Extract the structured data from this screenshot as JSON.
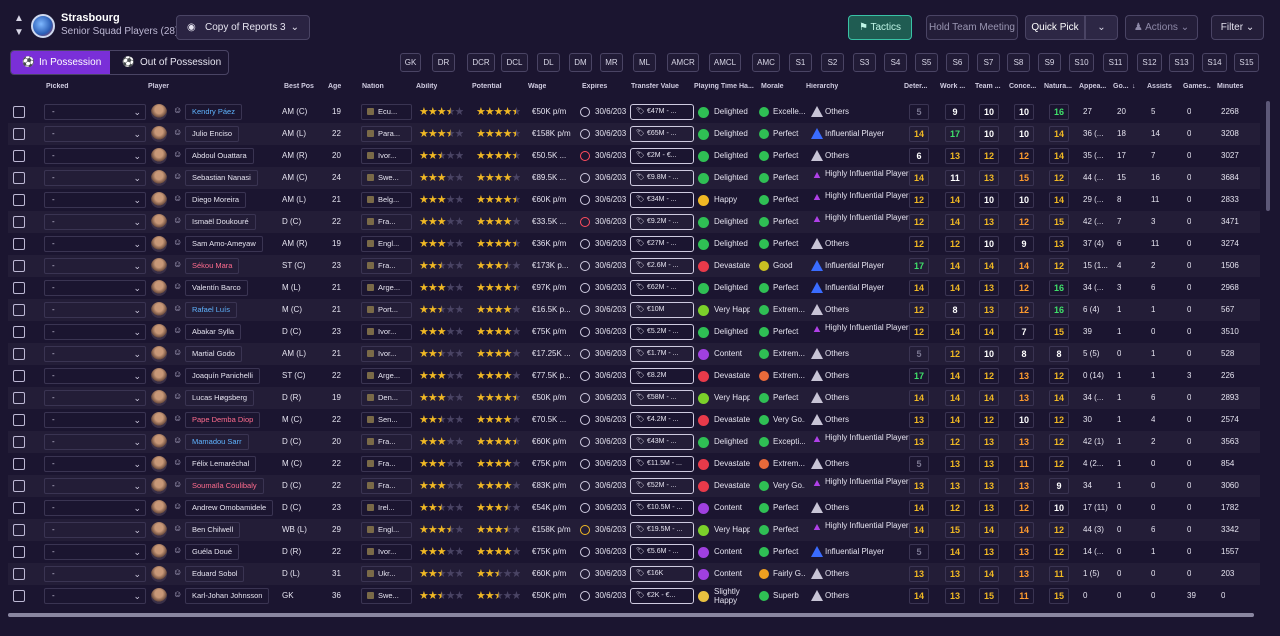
{
  "header": {
    "club": "Strasbourg",
    "squad": "Senior Squad Players (28)",
    "view": "Copy of Reports 3",
    "tactics": "Tactics",
    "meeting": "Hold Team Meeting",
    "quick_pick": "Quick Pick",
    "actions": "Actions",
    "filter": "Filter"
  },
  "toggle": {
    "in": "In Possession",
    "out": "Out of Possession"
  },
  "positions": [
    "GK",
    "DR",
    "DCR",
    "DCL",
    "DL",
    "DM",
    "MR",
    "ML",
    "AMCR",
    "AMCL",
    "AMC",
    "S1",
    "S2",
    "S3",
    "S4",
    "S5",
    "S6",
    "S7",
    "S8",
    "S9",
    "S10",
    "S11",
    "S12",
    "S13",
    "S14",
    "S15"
  ],
  "columns": {
    "picked": "Picked",
    "player": "Player",
    "best_pos": "Best Pos",
    "age": "Age",
    "nation": "Nation",
    "ability": "Ability",
    "potential": "Potential",
    "wage": "Wage",
    "expires": "Expires",
    "transfer_value": "Transfer Value",
    "playing_time": "Playing Time Ha...",
    "morale": "Morale",
    "hierarchy": "Hierarchy",
    "det": "Deter...",
    "work": "Work ...",
    "team": "Team ...",
    "conc": "Conce...",
    "nat": "Natura...",
    "apps": "Appea...",
    "goals": "Go...",
    "assists": "Assists",
    "games": "Games...",
    "minutes": "Minutes"
  },
  "players": [
    {
      "picked": "-",
      "name": "Kendry Páez",
      "nc": "blue",
      "pos": "AM (C)",
      "age": "19",
      "nation": "Ecu...",
      "ab": 3.5,
      "pt": 4.5,
      "wage": "€50K p/m",
      "exp": "30/6/203",
      "ec": "",
      "tv": "€47M - ...",
      "ptime": "Delighted",
      "pm": "#2fbf54",
      "morale": "Excelle...",
      "mm": "#2fbf54",
      "hier": "Others",
      "hc": "",
      "att": [
        [
          "5",
          "gr"
        ],
        [
          "9",
          "w"
        ],
        [
          "10",
          "w"
        ],
        [
          "10",
          "w"
        ],
        [
          "16",
          "g"
        ]
      ],
      "apps": "27",
      "gl": "20",
      "as": "5",
      "gm": "0",
      "mi": "2268"
    },
    {
      "picked": "-",
      "name": "Julio Enciso",
      "nc": "",
      "pos": "AM (L)",
      "age": "22",
      "nation": "Para...",
      "ab": 3.5,
      "pt": 4.5,
      "wage": "€158K p/m",
      "exp": "30/6/203",
      "ec": "",
      "tv": "€65M - ...",
      "ptime": "Delighted",
      "pm": "#2fbf54",
      "morale": "Perfect",
      "mm": "#2fbf54",
      "hier": "Influential Player",
      "hc": "blue",
      "att": [
        [
          "14",
          "y"
        ],
        [
          "17",
          "g"
        ],
        [
          "10",
          "w"
        ],
        [
          "10",
          "w"
        ],
        [
          "14",
          "y"
        ]
      ],
      "apps": "36 (...",
      "gl": "18",
      "as": "14",
      "gm": "0",
      "mi": "3208"
    },
    {
      "picked": "-",
      "name": "Abdoul Ouattara",
      "nc": "",
      "pos": "AM (R)",
      "age": "20",
      "nation": "Ivor...",
      "ab": 2.5,
      "pt": 4.5,
      "wage": "€50.5K ...",
      "exp": "30/6/203",
      "ec": "red",
      "tv": "€2M - €...",
      "ptime": "Delighted",
      "pm": "#2fbf54",
      "morale": "Perfect",
      "mm": "#2fbf54",
      "hier": "Others",
      "hc": "",
      "att": [
        [
          "6",
          "w"
        ],
        [
          "13",
          "y"
        ],
        [
          "12",
          "y"
        ],
        [
          "12",
          "o"
        ],
        [
          "14",
          "y"
        ]
      ],
      "apps": "35 (...",
      "gl": "17",
      "as": "7",
      "gm": "0",
      "mi": "3027"
    },
    {
      "picked": "-",
      "name": "Sebastian Nanasi",
      "nc": "",
      "pos": "AM (C)",
      "age": "24",
      "nation": "Swe...",
      "ab": 3,
      "pt": 4,
      "wage": "€89.5K ...",
      "exp": "30/6/203",
      "ec": "",
      "tv": "€9.8M - ...",
      "ptime": "Delighted",
      "pm": "#2fbf54",
      "morale": "Perfect",
      "mm": "#2fbf54",
      "hier": "Highly Influential Player",
      "hc": "purp",
      "att": [
        [
          "14",
          "y"
        ],
        [
          "11",
          "w"
        ],
        [
          "13",
          "y"
        ],
        [
          "15",
          "o"
        ],
        [
          "12",
          "y"
        ]
      ],
      "apps": "44 (...",
      "gl": "15",
      "as": "16",
      "gm": "0",
      "mi": "3684"
    },
    {
      "picked": "-",
      "name": "Diego Moreira",
      "nc": "",
      "pos": "AM (L)",
      "age": "21",
      "nation": "Belg...",
      "ab": 3,
      "pt": 4.5,
      "wage": "€60K p/m",
      "exp": "30/6/203",
      "ec": "",
      "tv": "€34M - ...",
      "ptime": "Happy",
      "pm": "#f0b824",
      "morale": "Perfect",
      "mm": "#2fbf54",
      "hier": "Highly Influential Player",
      "hc": "purp",
      "att": [
        [
          "12",
          "y"
        ],
        [
          "14",
          "y"
        ],
        [
          "10",
          "w"
        ],
        [
          "10",
          "w"
        ],
        [
          "14",
          "y"
        ]
      ],
      "apps": "29 (...",
      "gl": "8",
      "as": "11",
      "gm": "0",
      "mi": "2833"
    },
    {
      "picked": "-",
      "name": "Ismaël Doukouré",
      "nc": "",
      "pos": "D (C)",
      "age": "22",
      "nation": "Fra...",
      "ab": 3,
      "pt": 4,
      "wage": "€33.5K ...",
      "exp": "30/6/203",
      "ec": "red",
      "tv": "€9.2M - ...",
      "ptime": "Delighted",
      "pm": "#2fbf54",
      "morale": "Perfect",
      "mm": "#2fbf54",
      "hier": "Highly Influential Player",
      "hc": "purp",
      "att": [
        [
          "12",
          "y"
        ],
        [
          "14",
          "y"
        ],
        [
          "13",
          "y"
        ],
        [
          "12",
          "o"
        ],
        [
          "15",
          "y"
        ]
      ],
      "apps": "42 (...",
      "gl": "7",
      "as": "3",
      "gm": "0",
      "mi": "3471"
    },
    {
      "picked": "-",
      "name": "Sam Amo-Ameyaw",
      "nc": "",
      "pos": "AM (R)",
      "age": "19",
      "nation": "Engl...",
      "ab": 3,
      "pt": 4.5,
      "wage": "€36K p/m",
      "exp": "30/6/203",
      "ec": "",
      "tv": "€27M - ...",
      "ptime": "Delighted",
      "pm": "#2fbf54",
      "morale": "Perfect",
      "mm": "#2fbf54",
      "hier": "Others",
      "hc": "",
      "att": [
        [
          "12",
          "y"
        ],
        [
          "12",
          "y"
        ],
        [
          "10",
          "w"
        ],
        [
          "9",
          "w"
        ],
        [
          "13",
          "y"
        ]
      ],
      "apps": "37 (4)",
      "gl": "6",
      "as": "11",
      "gm": "0",
      "mi": "3274"
    },
    {
      "picked": "-",
      "name": "Sékou Mara",
      "nc": "red",
      "pos": "ST (C)",
      "age": "23",
      "nation": "Fra...",
      "ab": 2.5,
      "pt": 3.5,
      "wage": "€173K p...",
      "exp": "30/6/203",
      "ec": "",
      "tv": "€2.6M - ...",
      "ptime": "Devastated",
      "pm": "#e83a4a",
      "morale": "Good",
      "mm": "#c8c022",
      "hier": "Influential Player",
      "hc": "blue",
      "att": [
        [
          "17",
          "g"
        ],
        [
          "14",
          "y"
        ],
        [
          "14",
          "y"
        ],
        [
          "14",
          "o"
        ],
        [
          "12",
          "y"
        ]
      ],
      "apps": "15 (1...",
      "gl": "4",
      "as": "2",
      "gm": "0",
      "mi": "1506"
    },
    {
      "picked": "-",
      "name": "Valentín Barco",
      "nc": "",
      "pos": "M (L)",
      "age": "21",
      "nation": "Arge...",
      "ab": 3,
      "pt": 4.5,
      "wage": "€97K p/m",
      "exp": "30/6/203",
      "ec": "",
      "tv": "€62M - ...",
      "ptime": "Delighted",
      "pm": "#2fbf54",
      "morale": "Perfect",
      "mm": "#2fbf54",
      "hier": "Influential Player",
      "hc": "blue",
      "att": [
        [
          "14",
          "y"
        ],
        [
          "14",
          "y"
        ],
        [
          "13",
          "y"
        ],
        [
          "12",
          "o"
        ],
        [
          "16",
          "g"
        ]
      ],
      "apps": "34 (...",
      "gl": "3",
      "as": "6",
      "gm": "0",
      "mi": "2968"
    },
    {
      "picked": "-",
      "name": "Rafael Luís",
      "nc": "blue",
      "pos": "M (C)",
      "age": "21",
      "nation": "Port...",
      "ab": 2.5,
      "pt": 4,
      "wage": "€16.5K p...",
      "exp": "30/6/203",
      "ec": "",
      "tv": "€10M",
      "ptime": "Very Happy",
      "pm": "#7bd02a",
      "morale": "Extrem...",
      "mm": "#2fbf54",
      "hier": "Others",
      "hc": "",
      "att": [
        [
          "12",
          "y"
        ],
        [
          "8",
          "w"
        ],
        [
          "13",
          "y"
        ],
        [
          "12",
          "o"
        ],
        [
          "16",
          "g"
        ]
      ],
      "apps": "6 (4)",
      "gl": "1",
      "as": "1",
      "gm": "0",
      "mi": "567"
    },
    {
      "picked": "-",
      "name": "Abakar Sylla",
      "nc": "",
      "pos": "D (C)",
      "age": "23",
      "nation": "Ivor...",
      "ab": 3,
      "pt": 4,
      "wage": "€75K p/m",
      "exp": "30/6/203",
      "ec": "",
      "tv": "€5.2M - ...",
      "ptime": "Delighted",
      "pm": "#2fbf54",
      "morale": "Perfect",
      "mm": "#2fbf54",
      "hier": "Highly Influential Player",
      "hc": "purp",
      "att": [
        [
          "12",
          "y"
        ],
        [
          "14",
          "y"
        ],
        [
          "14",
          "y"
        ],
        [
          "7",
          "w"
        ],
        [
          "15",
          "y"
        ]
      ],
      "apps": "39",
      "gl": "1",
      "as": "0",
      "gm": "0",
      "mi": "3510"
    },
    {
      "picked": "-",
      "name": "Martial Godo",
      "nc": "",
      "pos": "AM (L)",
      "age": "21",
      "nation": "Ivor...",
      "ab": 2.5,
      "pt": 4,
      "wage": "€17.25K ...",
      "exp": "30/6/203",
      "ec": "",
      "tv": "€1.7M - ...",
      "ptime": "Content",
      "pm": "#a040e0",
      "morale": "Extrem...",
      "mm": "#2fbf54",
      "hier": "Others",
      "hc": "",
      "att": [
        [
          "5",
          "gr"
        ],
        [
          "12",
          "y"
        ],
        [
          "10",
          "w"
        ],
        [
          "8",
          "w"
        ],
        [
          "8",
          "w"
        ]
      ],
      "apps": "5 (5)",
      "gl": "0",
      "as": "1",
      "gm": "0",
      "mi": "528"
    },
    {
      "picked": "-",
      "name": "Joaquín Panichelli",
      "nc": "",
      "pos": "ST (C)",
      "age": "22",
      "nation": "Arge...",
      "ab": 3,
      "pt": 4,
      "wage": "€77.5K p...",
      "exp": "30/6/203",
      "ec": "",
      "tv": "€8.2M",
      "ptime": "Devastated",
      "pm": "#e83a4a",
      "morale": "Extrem...",
      "mm": "#e86a3a",
      "hier": "Others",
      "hc": "",
      "att": [
        [
          "17",
          "g"
        ],
        [
          "14",
          "y"
        ],
        [
          "12",
          "y"
        ],
        [
          "13",
          "o"
        ],
        [
          "12",
          "y"
        ]
      ],
      "apps": "0 (14)",
      "gl": "1",
      "as": "1",
      "gm": "3",
      "mi": "226"
    },
    {
      "picked": "-",
      "name": "Lucas Høgsberg",
      "nc": "",
      "pos": "D (R)",
      "age": "19",
      "nation": "Den...",
      "ab": 3,
      "pt": 4.5,
      "wage": "€50K p/m",
      "exp": "30/6/203",
      "ec": "",
      "tv": "€58M - ...",
      "ptime": "Very Happy",
      "pm": "#7bd02a",
      "morale": "Perfect",
      "mm": "#2fbf54",
      "hier": "Others",
      "hc": "",
      "att": [
        [
          "14",
          "y"
        ],
        [
          "14",
          "y"
        ],
        [
          "14",
          "y"
        ],
        [
          "13",
          "o"
        ],
        [
          "14",
          "y"
        ]
      ],
      "apps": "34 (...",
      "gl": "1",
      "as": "6",
      "gm": "0",
      "mi": "2893"
    },
    {
      "picked": "-",
      "name": "Pape Demba Diop",
      "nc": "red",
      "pos": "M (C)",
      "age": "22",
      "nation": "Sen...",
      "ab": 2.5,
      "pt": 4,
      "wage": "€70.5K ...",
      "exp": "30/6/203",
      "ec": "",
      "tv": "€4.2M - ...",
      "ptime": "Devastated",
      "pm": "#e83a4a",
      "morale": "Very Go...",
      "mm": "#2fbf54",
      "hier": "Others",
      "hc": "",
      "att": [
        [
          "13",
          "y"
        ],
        [
          "14",
          "y"
        ],
        [
          "12",
          "y"
        ],
        [
          "10",
          "w"
        ],
        [
          "12",
          "y"
        ]
      ],
      "apps": "30",
      "gl": "1",
      "as": "4",
      "gm": "0",
      "mi": "2574"
    },
    {
      "picked": "-",
      "name": "Mamadou Sarr",
      "nc": "blue",
      "pos": "D (C)",
      "age": "20",
      "nation": "Fra...",
      "ab": 3,
      "pt": 4.5,
      "wage": "€60K p/m",
      "exp": "30/6/203",
      "ec": "",
      "tv": "€43M - ...",
      "ptime": "Delighted",
      "pm": "#2fbf54",
      "morale": "Excepti...",
      "mm": "#2fbf54",
      "hier": "Highly Influential Player",
      "hc": "purp",
      "att": [
        [
          "13",
          "y"
        ],
        [
          "12",
          "y"
        ],
        [
          "13",
          "y"
        ],
        [
          "13",
          "o"
        ],
        [
          "12",
          "y"
        ]
      ],
      "apps": "42 (1)",
      "gl": "1",
      "as": "2",
      "gm": "0",
      "mi": "3563"
    },
    {
      "picked": "-",
      "name": "Félix Lemaréchal",
      "nc": "",
      "pos": "M (C)",
      "age": "22",
      "nation": "Fra...",
      "ab": 3,
      "pt": 4,
      "wage": "€75K p/m",
      "exp": "30/6/203",
      "ec": "",
      "tv": "€11.5M - ...",
      "ptime": "Devastated",
      "pm": "#e83a4a",
      "morale": "Extrem...",
      "mm": "#e86a3a",
      "hier": "Others",
      "hc": "",
      "att": [
        [
          "5",
          "gr"
        ],
        [
          "13",
          "y"
        ],
        [
          "13",
          "y"
        ],
        [
          "11",
          "o"
        ],
        [
          "12",
          "y"
        ]
      ],
      "apps": "4 (2...",
      "gl": "1",
      "as": "0",
      "gm": "0",
      "mi": "854"
    },
    {
      "picked": "-",
      "name": "Soumaïla Coulibaly",
      "nc": "red",
      "pos": "D (C)",
      "age": "22",
      "nation": "Fra...",
      "ab": 3,
      "pt": 4,
      "wage": "€83K p/m",
      "exp": "30/6/203",
      "ec": "",
      "tv": "€52M - ...",
      "ptime": "Devastated",
      "pm": "#e83a4a",
      "morale": "Very Go...",
      "mm": "#2fbf54",
      "hier": "Highly Influential Player",
      "hc": "purp",
      "att": [
        [
          "13",
          "y"
        ],
        [
          "13",
          "y"
        ],
        [
          "13",
          "y"
        ],
        [
          "13",
          "o"
        ],
        [
          "9",
          "w"
        ]
      ],
      "apps": "34",
      "gl": "1",
      "as": "0",
      "gm": "0",
      "mi": "3060"
    },
    {
      "picked": "-",
      "name": "Andrew Omobamidele",
      "nc": "",
      "pos": "D (C)",
      "age": "23",
      "nation": "Irel...",
      "ab": 2.5,
      "pt": 3.5,
      "wage": "€54K p/m",
      "exp": "30/6/203",
      "ec": "",
      "tv": "€10.5M - ...",
      "ptime": "Content",
      "pm": "#a040e0",
      "morale": "Perfect",
      "mm": "#2fbf54",
      "hier": "Others",
      "hc": "",
      "att": [
        [
          "14",
          "y"
        ],
        [
          "12",
          "y"
        ],
        [
          "13",
          "y"
        ],
        [
          "12",
          "o"
        ],
        [
          "10",
          "w"
        ]
      ],
      "apps": "17 (11)",
      "gl": "0",
      "as": "0",
      "gm": "0",
      "mi": "1782"
    },
    {
      "picked": "-",
      "name": "Ben Chilwell",
      "nc": "",
      "pos": "WB (L)",
      "age": "29",
      "nation": "Engl...",
      "ab": 3.5,
      "pt": 3.5,
      "wage": "€158K p/m",
      "exp": "30/6/203",
      "ec": "yel",
      "tv": "€19.5M - ...",
      "ptime": "Very Happy",
      "pm": "#7bd02a",
      "morale": "Perfect",
      "mm": "#2fbf54",
      "hier": "Highly Influential Player",
      "hc": "purp",
      "att": [
        [
          "14",
          "y"
        ],
        [
          "15",
          "y"
        ],
        [
          "14",
          "y"
        ],
        [
          "14",
          "o"
        ],
        [
          "12",
          "y"
        ]
      ],
      "apps": "44 (3)",
      "gl": "0",
      "as": "6",
      "gm": "0",
      "mi": "3342"
    },
    {
      "picked": "-",
      "name": "Guéla Doué",
      "nc": "",
      "pos": "D (R)",
      "age": "22",
      "nation": "Ivor...",
      "ab": 3,
      "pt": 4,
      "wage": "€75K p/m",
      "exp": "30/6/203",
      "ec": "",
      "tv": "€5.6M - ...",
      "ptime": "Content",
      "pm": "#a040e0",
      "morale": "Perfect",
      "mm": "#2fbf54",
      "hier": "Influential Player",
      "hc": "blue",
      "att": [
        [
          "5",
          "gr"
        ],
        [
          "14",
          "y"
        ],
        [
          "13",
          "y"
        ],
        [
          "13",
          "o"
        ],
        [
          "12",
          "y"
        ]
      ],
      "apps": "14 (...",
      "gl": "0",
      "as": "1",
      "gm": "0",
      "mi": "1557"
    },
    {
      "picked": "-",
      "name": "Eduard Sobol",
      "nc": "",
      "pos": "D (L)",
      "age": "31",
      "nation": "Ukr...",
      "ab": 2.5,
      "pt": 2.5,
      "wage": "€60K p/m",
      "exp": "30/6/203",
      "ec": "",
      "tv": "€16K",
      "ptime": "Content",
      "pm": "#a040e0",
      "morale": "Fairly G...",
      "mm": "#f0a020",
      "hier": "Others",
      "hc": "",
      "att": [
        [
          "13",
          "y"
        ],
        [
          "13",
          "y"
        ],
        [
          "14",
          "y"
        ],
        [
          "13",
          "o"
        ],
        [
          "11",
          "y"
        ]
      ],
      "apps": "1 (5)",
      "gl": "0",
      "as": "0",
      "gm": "0",
      "mi": "203"
    },
    {
      "picked": "-",
      "name": "Karl-Johan Johnsson",
      "nc": "",
      "pos": "GK",
      "age": "36",
      "nation": "Swe...",
      "ab": 2.5,
      "pt": 2.5,
      "wage": "€50K p/m",
      "exp": "30/6/203",
      "ec": "",
      "tv": "€2K - €...",
      "ptime": "Slightly Happy",
      "pm": "#e8c040",
      "morale": "Superb",
      "mm": "#2fbf54",
      "hier": "Others",
      "hc": "",
      "att": [
        [
          "14",
          "y"
        ],
        [
          "13",
          "y"
        ],
        [
          "15",
          "y"
        ],
        [
          "11",
          "o"
        ],
        [
          "15",
          "y"
        ]
      ],
      "apps": "0",
      "gl": "0",
      "as": "0",
      "gm": "39",
      "mi": "0"
    }
  ]
}
